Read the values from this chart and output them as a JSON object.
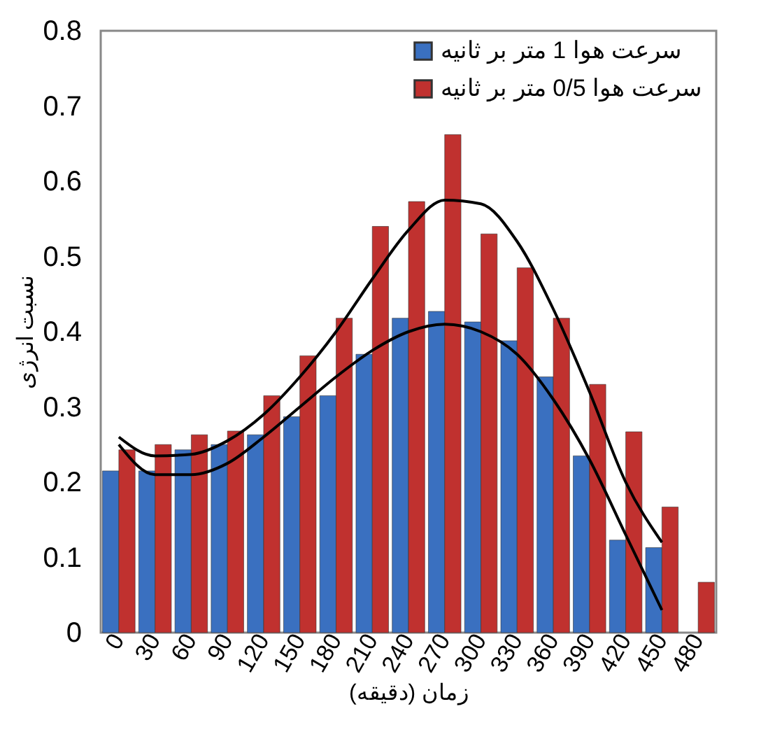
{
  "chart_data": {
    "type": "bar",
    "xlabel": "زمان (دقیقه)",
    "ylabel": "نسبت انرژی",
    "categories": [
      "0",
      "30",
      "60",
      "90",
      "120",
      "150",
      "180",
      "210",
      "240",
      "270",
      "300",
      "330",
      "360",
      "390",
      "420",
      "450",
      "480"
    ],
    "series": [
      {
        "name": "سرعت هوا 1 متر بر ثانیه",
        "color": "#3a70c0",
        "values": [
          0.215,
          0.215,
          0.243,
          0.25,
          0.263,
          0.287,
          0.315,
          0.37,
          0.418,
          0.427,
          0.413,
          0.388,
          0.34,
          0.235,
          0.123,
          0.113,
          null
        ]
      },
      {
        "name": "سرعت هوا  0/5 متر بر ثانیه",
        "color": "#c0312f",
        "values": [
          0.243,
          0.25,
          0.263,
          0.268,
          0.315,
          0.368,
          0.418,
          0.54,
          0.573,
          0.662,
          0.53,
          0.485,
          0.418,
          0.33,
          0.267,
          0.167,
          0.067
        ]
      },
      {
        "type": "line",
        "color": "#000000",
        "values": [
          0.26,
          0.235,
          0.237,
          0.255,
          0.29,
          0.34,
          0.4,
          0.47,
          0.535,
          0.575,
          0.57,
          0.52,
          0.43,
          0.32,
          0.2,
          0.12,
          null
        ]
      },
      {
        "type": "line",
        "color": "#000000",
        "values": [
          0.25,
          0.21,
          0.21,
          0.225,
          0.26,
          0.3,
          0.34,
          0.375,
          0.4,
          0.41,
          0.4,
          0.37,
          0.31,
          0.23,
          0.13,
          0.03,
          null
        ]
      }
    ],
    "ylim": [
      0,
      0.8
    ],
    "yticks": [
      0,
      0.1,
      0.2,
      0.3,
      0.4,
      0.5,
      0.6,
      0.7,
      0.8
    ],
    "grid": false,
    "legend": "top right"
  }
}
